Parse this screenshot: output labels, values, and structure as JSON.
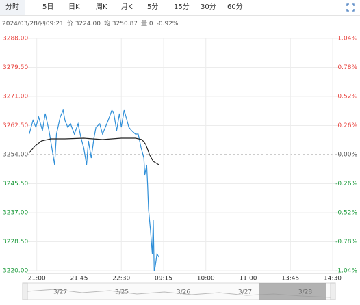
{
  "tabs": [
    "分时",
    "5日",
    "日K",
    "周K",
    "月K",
    "5分",
    "15分",
    "30分",
    "60分"
  ],
  "info": {
    "time": "2024/03/28/四09:21",
    "price": "价 3224.00",
    "avg": "均 3250.87",
    "volume": "量 0",
    "change": "-0.92%"
  },
  "chart_data": {
    "type": "line",
    "xlim": [
      -10,
      323
    ],
    "xticks": [
      {
        "value": 0,
        "label": "21:00"
      },
      {
        "value": 45,
        "label": "21:45"
      },
      {
        "value": 90,
        "label": "22:30"
      },
      {
        "value": 135,
        "label": "09:15"
      },
      {
        "value": 180,
        "label": "10:00"
      },
      {
        "value": 225,
        "label": "11:00"
      },
      {
        "value": 270,
        "label": "13:45"
      },
      {
        "value": 315,
        "label": "14:30"
      }
    ],
    "ylim": [
      3220,
      3288
    ],
    "yticks": [
      {
        "value": 3288,
        "label": "3288.00"
      },
      {
        "value": 3279.5,
        "label": "3279.50"
      },
      {
        "value": 3271,
        "label": "3271.00"
      },
      {
        "value": 3262.5,
        "label": "3262.50"
      },
      {
        "value": 3254,
        "label": "3254.00"
      },
      {
        "value": 3245.5,
        "label": "3245.50"
      },
      {
        "value": 3237,
        "label": "3237.00"
      },
      {
        "value": 3228.5,
        "label": "3228.50"
      },
      {
        "value": 3220,
        "label": "3220.00"
      }
    ],
    "y2lim": [
      -1.04,
      1.04
    ],
    "y2ticks": [
      {
        "value": 1.04,
        "label": "1.04%"
      },
      {
        "value": 0.78,
        "label": "0.78%"
      },
      {
        "value": 0.52,
        "label": "0.52%"
      },
      {
        "value": 0.26,
        "label": "0.26%"
      },
      {
        "value": 0,
        "label": "0.00%"
      },
      {
        "value": -0.26,
        "label": "-0.26%"
      },
      {
        "value": -0.52,
        "label": "-0.52%"
      },
      {
        "value": -0.78,
        "label": "-0.78%"
      },
      {
        "value": -1.04,
        "label": "-1.04%"
      }
    ],
    "baseline": 3254,
    "grid": true,
    "up_color": "#e8413c",
    "down_color": "#1a9a3a",
    "series": [
      {
        "color": "#2f8fd8",
        "x": [
          -8,
          -4,
          -1,
          2,
          6,
          9,
          13,
          16,
          19,
          21,
          25,
          28,
          30,
          33,
          36,
          40,
          44,
          47,
          50,
          53,
          55,
          58,
          61,
          63,
          67,
          70,
          73,
          76,
          80,
          82,
          85,
          88,
          90,
          93,
          96,
          98,
          101,
          105,
          108,
          111,
          114,
          115,
          117,
          118,
          119,
          121,
          123,
          124,
          125,
          126,
          128,
          130
        ],
        "values": [
          3260,
          3264,
          3262,
          3265,
          3261,
          3266,
          3261,
          3256,
          3251,
          3260,
          3265,
          3267,
          3264,
          3262,
          3263,
          3260,
          3263,
          3259,
          3256,
          3251,
          3258,
          3253,
          3259,
          3262,
          3263,
          3260,
          3262,
          3264,
          3267,
          3266,
          3261,
          3266,
          3262,
          3267,
          3264,
          3262,
          3261,
          3260,
          3260,
          3256,
          3253,
          3248,
          3251,
          3245,
          3238,
          3232,
          3225,
          3235,
          3220,
          3221,
          3225,
          3224
        ]
      },
      {
        "color": "#222222",
        "x": [
          -8,
          -2,
          5,
          15,
          30,
          50,
          70,
          90,
          105,
          112,
          116,
          120,
          124,
          130
        ],
        "values": [
          3254.5,
          3256.5,
          3258,
          3258.6,
          3258.6,
          3258.8,
          3258.4,
          3258.8,
          3258.8,
          3258.4,
          3257,
          3254,
          3252,
          3251
        ]
      }
    ]
  },
  "navigator": {
    "labels": [
      "3/27",
      "3/25",
      "3/26",
      "3/27",
      "3/28"
    ]
  }
}
